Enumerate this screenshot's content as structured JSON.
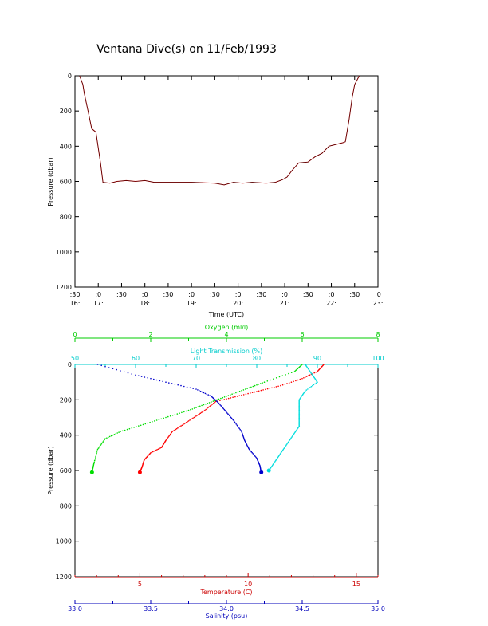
{
  "title": "Ventana Dive(s) on 11/Feb/1993",
  "chart_data": [
    {
      "type": "line",
      "ylabel": "Pressure (dbar)",
      "xlabel": "Time (UTC)",
      "ylim": [
        1200,
        0
      ],
      "yticks": [
        "0",
        "200",
        "400",
        "600",
        "800",
        "1000",
        "1200"
      ],
      "xtick_minutes": [
        ":30",
        ":0",
        ":30",
        ":0",
        ":30",
        ":0",
        ":30",
        ":0",
        ":30",
        ":0",
        ":30",
        ":0",
        ":30",
        ":0"
      ],
      "xtick_hours": [
        "16:",
        "17:",
        "",
        "18:",
        "",
        "19:",
        "",
        "20:",
        "",
        "21:",
        "",
        "22:",
        "",
        "23:"
      ],
      "x_range_hours": [
        16.5,
        23.0
      ],
      "series": [
        {
          "color": "#cc0000",
          "x": [
            16.6,
            16.67,
            16.7,
            16.78,
            16.86,
            16.95,
            17.05,
            17.1,
            17.25,
            17.4,
            17.6,
            17.8,
            18.0,
            18.2,
            18.5,
            19.0,
            19.5,
            19.7,
            19.9,
            20.1,
            20.3,
            20.6,
            20.8,
            20.95,
            21.05,
            21.15,
            21.25,
            21.3,
            21.5,
            21.65,
            21.8,
            21.95,
            22.1,
            22.25,
            22.3,
            22.38,
            22.45,
            22.5,
            22.6
          ],
          "y": [
            0,
            50,
            100,
            200,
            300,
            320,
            500,
            605,
            610,
            600,
            595,
            600,
            595,
            605,
            605,
            605,
            610,
            620,
            605,
            610,
            605,
            610,
            605,
            590,
            575,
            540,
            510,
            495,
            490,
            460,
            440,
            400,
            390,
            380,
            375,
            250,
            120,
            50,
            0
          ]
        }
      ]
    },
    {
      "type": "scatter",
      "ylabel": "Pressure (dbar)",
      "ylim": [
        1200,
        0
      ],
      "yticks": [
        "0",
        "200",
        "400",
        "600",
        "800",
        "1000",
        "1200"
      ],
      "axes": {
        "oxygen": {
          "label": "Oxygen (ml/l)",
          "range": [
            0,
            8
          ],
          "ticks": [
            "0",
            "2",
            "4",
            "6",
            "8"
          ],
          "color": "#00cc00"
        },
        "light": {
          "label": "Light Transmission (%)",
          "range": [
            50,
            100
          ],
          "ticks": [
            "50",
            "60",
            "70",
            "80",
            "90",
            "100"
          ],
          "color": "#00cccc"
        },
        "temperature": {
          "label": "Temperature (C)",
          "range": [
            2,
            16
          ],
          "ticks": [
            "5",
            "10",
            "15"
          ],
          "color": "#cc0000"
        },
        "salinity": {
          "label": "Salinity (psu)",
          "range": [
            33.0,
            35.0
          ],
          "ticks": [
            "33.0",
            "33.5",
            "34.0",
            "34.5",
            "35.0"
          ],
          "color": "#0000bb"
        }
      },
      "series": [
        {
          "name": "Temperature",
          "color": "#ff0000",
          "axis": "temperature",
          "x": [
            13.5,
            13.2,
            12.5,
            11.5,
            10.5,
            9.5,
            8.5,
            8.0,
            7.5,
            7.0,
            6.5,
            6.2,
            6.0,
            5.5,
            5.2,
            5.1,
            5.0
          ],
          "y": [
            0,
            40,
            80,
            120,
            150,
            180,
            210,
            260,
            300,
            340,
            380,
            430,
            470,
            500,
            540,
            580,
            610
          ]
        },
        {
          "name": "Salinity",
          "color": "#0000cc",
          "axis": "salinity",
          "x": [
            33.15,
            33.4,
            33.6,
            33.8,
            33.9,
            33.95,
            34.0,
            34.05,
            34.1,
            34.12,
            34.15,
            34.2,
            34.22,
            34.23
          ],
          "y": [
            0,
            60,
            100,
            140,
            180,
            220,
            270,
            320,
            380,
            430,
            480,
            530,
            570,
            610
          ]
        },
        {
          "name": "Oxygen",
          "color": "#00dd00",
          "axis": "oxygen",
          "x": [
            6.0,
            5.8,
            5.0,
            4.5,
            4.0,
            3.5,
            3.0,
            2.4,
            1.8,
            1.2,
            0.8,
            0.6,
            0.5,
            0.45
          ],
          "y": [
            0,
            40,
            100,
            140,
            180,
            220,
            260,
            300,
            340,
            380,
            420,
            480,
            560,
            610
          ]
        },
        {
          "name": "Light Transmission",
          "color": "#00dddd",
          "axis": "light",
          "x": [
            88,
            89,
            90,
            88,
            87,
            87,
            87,
            87,
            86,
            85,
            84,
            83,
            82
          ],
          "y": [
            0,
            50,
            100,
            150,
            200,
            250,
            300,
            350,
            400,
            450,
            500,
            550,
            600
          ]
        }
      ]
    }
  ]
}
